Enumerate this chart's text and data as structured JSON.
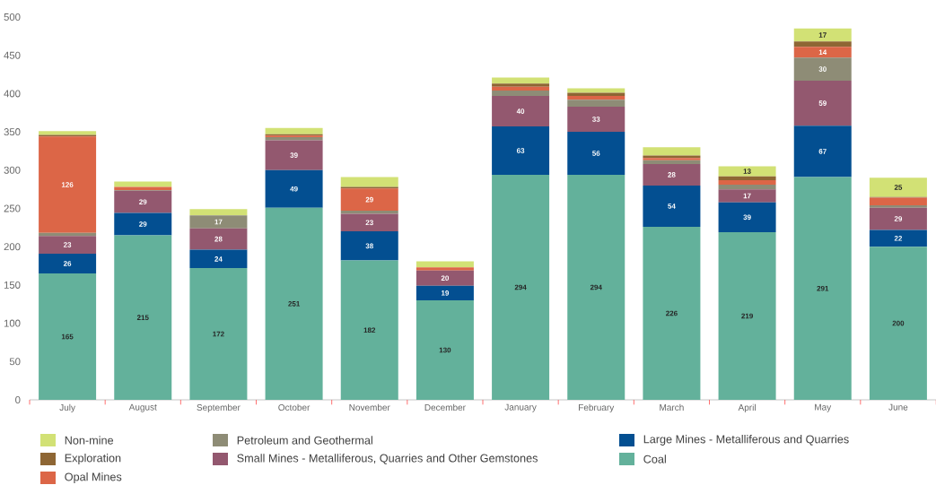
{
  "chart_data": {
    "type": "bar",
    "stacked": true,
    "legend": "bottom",
    "categories": [
      "July",
      "August",
      "September",
      "October",
      "November",
      "December",
      "January",
      "February",
      "March",
      "April",
      "May",
      "June"
    ],
    "ylim": [
      0,
      500
    ],
    "yticks": [
      0,
      50,
      100,
      150,
      200,
      250,
      300,
      350,
      400,
      450,
      500
    ],
    "series": [
      {
        "name": "Coal",
        "color": "#63b19b",
        "values": [
          165,
          215,
          172,
          251,
          182,
          130,
          294,
          294,
          226,
          219,
          291,
          200
        ],
        "value_labels": [
          "165",
          "215",
          "172",
          "251",
          "182",
          "130",
          "294",
          "294",
          "226",
          "219",
          "291",
          "200"
        ]
      },
      {
        "name": "Large Mines - Metalliferous and Quarries",
        "color": "#034f91",
        "values": [
          26,
          29,
          24,
          49,
          38,
          19,
          63,
          56,
          54,
          39,
          67,
          22
        ],
        "value_labels": [
          "26",
          "29",
          "24",
          "49",
          "38",
          "19",
          "63",
          "56",
          "54",
          "39",
          "67",
          "22"
        ]
      },
      {
        "name": "Small Mines - Metalliferous, Quarries and Other Gemstones",
        "color": "#93586f",
        "values": [
          23,
          29,
          28,
          39,
          23,
          20,
          40,
          33,
          28,
          17,
          59,
          29
        ],
        "value_labels": [
          "23",
          "29",
          "28",
          "39",
          "23",
          "20",
          "40",
          "33",
          "28",
          "17",
          "59",
          "29"
        ]
      },
      {
        "name": "Petroleum and Geothermal",
        "color": "#8e8c76",
        "values": [
          4,
          1,
          17,
          4,
          4,
          0,
          7,
          9,
          5,
          6,
          30,
          3
        ],
        "value_labels": [
          null,
          null,
          "17",
          null,
          null,
          null,
          null,
          null,
          null,
          null,
          "30",
          null
        ]
      },
      {
        "name": "Opal Mines",
        "color": "#dc6647",
        "values": [
          126,
          4,
          0,
          2,
          29,
          4,
          5,
          5,
          3,
          6,
          14,
          10
        ],
        "value_labels": [
          "126",
          null,
          null,
          null,
          "29",
          null,
          null,
          null,
          null,
          null,
          "14",
          null
        ]
      },
      {
        "name": "Exploration",
        "color": "#8e6634",
        "values": [
          2,
          0,
          0,
          2,
          2,
          0,
          4,
          4,
          3,
          5,
          7,
          1
        ],
        "value_labels": [
          null,
          null,
          null,
          null,
          null,
          null,
          null,
          null,
          null,
          null,
          null,
          null
        ]
      },
      {
        "name": "Non-mine",
        "color": "#d2e175",
        "values": [
          5,
          7,
          8,
          8,
          13,
          8,
          8,
          6,
          11,
          13,
          17,
          25
        ],
        "value_labels": [
          null,
          null,
          null,
          null,
          null,
          null,
          null,
          null,
          null,
          "13",
          "17",
          "25"
        ]
      }
    ]
  }
}
